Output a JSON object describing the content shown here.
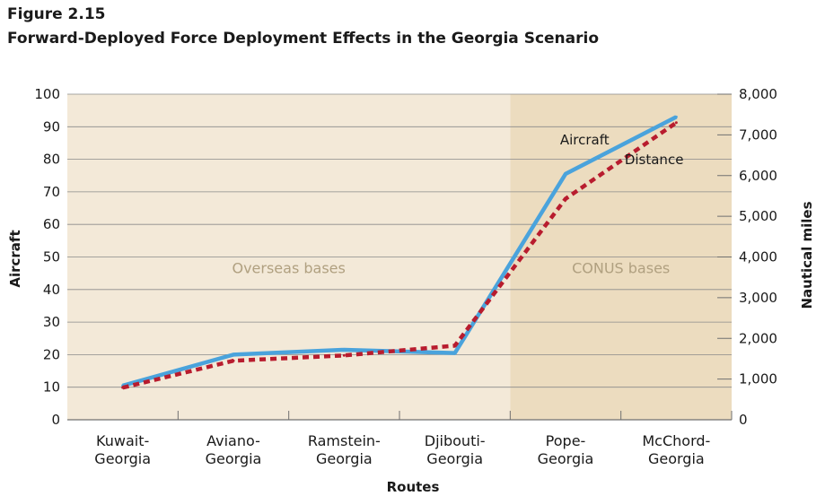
{
  "figure": {
    "label": "Figure 2.15",
    "title": "Forward-Deployed Force Deployment Effects in the Georgia Scenario"
  },
  "chart_data": {
    "type": "line",
    "categories": [
      [
        "Kuwait-",
        "Georgia"
      ],
      [
        "Aviano-",
        "Georgia"
      ],
      [
        "Ramstein-",
        "Georgia"
      ],
      [
        "Djibouti-",
        "Georgia"
      ],
      [
        "Pope-",
        "Georgia"
      ],
      [
        "McChord-",
        "Georgia"
      ]
    ],
    "xlabel": "Routes",
    "ylabel": "Aircraft",
    "y2label": "Nautical miles",
    "ylim": [
      0,
      100
    ],
    "y2lim": [
      0,
      8000
    ],
    "yticks": [
      "0",
      "10",
      "20",
      "30",
      "40",
      "50",
      "60",
      "70",
      "80",
      "90",
      "100"
    ],
    "y2ticks": [
      "0",
      "1,000",
      "2,000",
      "3,000",
      "4,000",
      "5,000",
      "6,000",
      "7,000",
      "8,000"
    ],
    "grid": true,
    "regions": [
      {
        "label": "Overseas bases",
        "from": 0,
        "to": 3,
        "color": "#f3e9d8"
      },
      {
        "label": "CONUS bases",
        "from": 4,
        "to": 5,
        "color": "#ecdcbf"
      }
    ],
    "series": [
      {
        "name": "Aircraft",
        "axis": "left",
        "values": [
          10.5,
          20,
          21.5,
          20.5,
          75.5,
          93
        ],
        "color": "#4aa3dc",
        "style": "solid"
      },
      {
        "name": "Distance",
        "axis": "right",
        "values": [
          790,
          1450,
          1580,
          1820,
          5430,
          7300
        ],
        "color": "#b81c2e",
        "style": "dashed"
      }
    ]
  }
}
